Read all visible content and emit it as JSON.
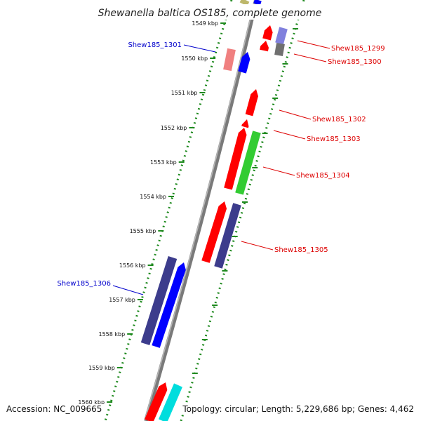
{
  "title": "Shewanella baltica OS185, complete genome",
  "ticks": [
    "1549 kbp",
    "1550 kbp",
    "1551 kbp",
    "1552 kbp",
    "1553 kbp",
    "1554 kbp",
    "1555 kbp",
    "1556 kbp",
    "1557 kbp",
    "1558 kbp",
    "1559 kbp",
    "1560 kbp"
  ],
  "genes": [
    {
      "label": "Shew185_1299",
      "color": "#dd0000"
    },
    {
      "label": "Shew185_1300",
      "color": "#dd0000"
    },
    {
      "label": "Shew185_1301",
      "color": "#0000cc"
    },
    {
      "label": "Shew185_1302",
      "color": "#dd0000"
    },
    {
      "label": "Shew185_1303",
      "color": "#dd0000"
    },
    {
      "label": "Shew185_1304",
      "color": "#dd0000"
    },
    {
      "label": "Shew185_1305",
      "color": "#dd0000"
    },
    {
      "label": "Shew185_1306",
      "color": "#0000cc"
    }
  ],
  "footer": {
    "accession": "Accession: NC_009665",
    "summary": "Topology: circular; Length: 5,229,686 bp; Genes: 4,462"
  },
  "colors": {
    "backbone": "#7a7a7a",
    "tick_marks": "#1f8a1f",
    "feature_red": "#ff0000",
    "feature_blue": "#0000ff",
    "feature_navy": "#3c3c8c",
    "feature_green": "#33cc33",
    "feature_cyan": "#00dddd",
    "feature_pink": "#f08080",
    "feature_purple": "#8080dd",
    "feature_gray": "#707070"
  }
}
